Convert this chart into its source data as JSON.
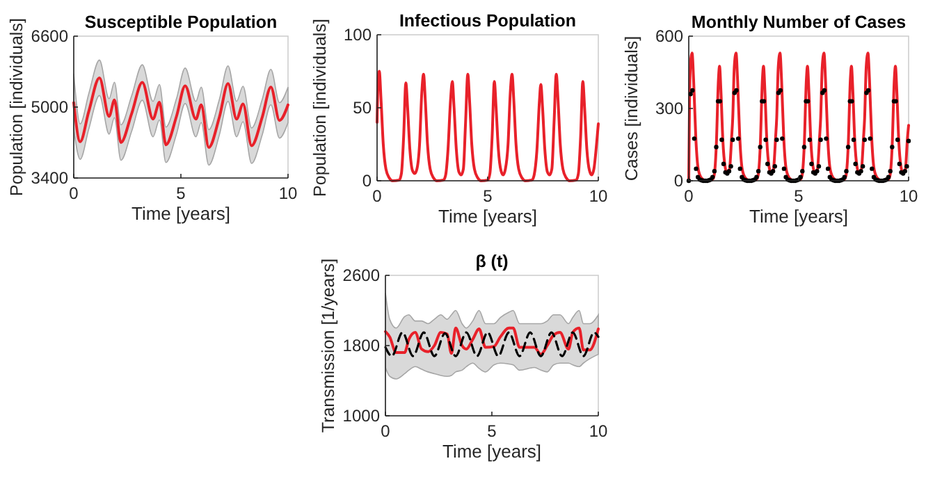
{
  "chart_data": [
    {
      "type": "line",
      "title": "Susceptible Population",
      "xlabel": "Time [years]",
      "ylabel": "Population [individuals]",
      "xlim": [
        0,
        10
      ],
      "xticks": [
        0,
        5,
        10
      ],
      "ylim": [
        3400,
        6600
      ],
      "yticks": [
        3400,
        5000,
        6600
      ],
      "series": [
        {
          "color": "#e8212a",
          "x": [
            0,
            0.3,
            0.7,
            1.2,
            1.65,
            1.9,
            2.2,
            2.7,
            3.2,
            3.7,
            4.0,
            4.3,
            4.8,
            5.2,
            5.7,
            5.95,
            6.3,
            6.8,
            7.2,
            7.6,
            7.9,
            8.3,
            8.8,
            9.2,
            9.6,
            10
          ],
          "values": [
            5100,
            4220,
            4900,
            5660,
            4790,
            5160,
            4200,
            4850,
            5555,
            4730,
            5110,
            4150,
            4800,
            5480,
            4730,
            5050,
            4090,
            4780,
            5530,
            4730,
            5070,
            4130,
            4780,
            5450,
            4700,
            5050
          ],
          "upper": [
            5750,
            4620,
            5300,
            6060,
            5190,
            5560,
            4600,
            5250,
            5955,
            5130,
            5510,
            4550,
            5200,
            5880,
            5130,
            5450,
            4490,
            5180,
            5930,
            5130,
            5470,
            4530,
            5180,
            5850,
            5100,
            5450
          ],
          "lower": [
            4500,
            3820,
            4500,
            5260,
            4390,
            4760,
            3800,
            4450,
            5155,
            4330,
            4710,
            3750,
            4400,
            5080,
            4330,
            4650,
            3690,
            4380,
            5130,
            4330,
            4670,
            3730,
            4380,
            5050,
            4300,
            4650
          ]
        }
      ]
    },
    {
      "type": "line",
      "title": "Infectious Population",
      "xlabel": "Time [years]",
      "ylabel": "Population [individuals]",
      "xlim": [
        0,
        10
      ],
      "xticks": [
        0,
        5,
        10
      ],
      "ylim": [
        0,
        100
      ],
      "yticks": [
        0,
        50,
        100
      ],
      "series": [
        {
          "color": "#e8212a",
          "x": [
            0,
            0.05,
            0.1,
            0.18,
            0.28,
            0.4,
            0.55,
            0.7,
            1.0,
            1.1,
            1.2,
            1.3,
            1.38,
            1.48,
            1.6,
            1.7,
            1.8,
            1.92,
            2.02,
            2.1,
            2.18,
            2.28,
            2.4,
            2.55,
            2.7,
            3.0,
            3.1,
            3.2,
            3.32,
            3.4,
            3.48,
            3.58,
            3.7,
            3.8,
            3.9,
            4.0,
            4.1,
            4.18,
            4.28,
            4.4,
            4.55,
            4.7,
            5.0,
            5.1,
            5.2,
            5.3,
            5.38,
            5.48,
            5.6,
            5.7,
            5.8,
            5.92,
            6.02,
            6.1,
            6.18,
            6.28,
            6.4,
            6.55,
            6.7,
            7.0,
            7.1,
            7.22,
            7.34,
            7.4,
            7.48,
            7.58,
            7.7,
            7.8,
            7.9,
            8.0,
            8.1,
            8.18,
            8.28,
            8.4,
            8.55,
            8.7,
            9.0,
            9.1,
            9.2,
            9.3,
            9.38,
            9.48,
            9.6,
            9.7,
            9.8,
            9.92,
            10
          ],
          "values": [
            40,
            70,
            75,
            55,
            25,
            8,
            2,
            0,
            0.5,
            5,
            30,
            67,
            50,
            22,
            7,
            5,
            8,
            25,
            60,
            73,
            55,
            25,
            8,
            2,
            0,
            0.5,
            4,
            20,
            55,
            68,
            50,
            22,
            6,
            4,
            8,
            40,
            73,
            55,
            25,
            8,
            2,
            0,
            0.5,
            5,
            30,
            68,
            50,
            22,
            7,
            4,
            8,
            25,
            60,
            73,
            55,
            25,
            8,
            2,
            0,
            0.5,
            4,
            20,
            55,
            66,
            50,
            22,
            6,
            4,
            8,
            40,
            73,
            55,
            25,
            8,
            2,
            0,
            0.5,
            5,
            30,
            68,
            50,
            22,
            7,
            4,
            8,
            25,
            39
          ]
        }
      ]
    },
    {
      "type": "line",
      "title": "Monthly Number of Cases",
      "xlabel": "Time [years]",
      "ylabel": "Cases [individuals]",
      "xlim": [
        0,
        10
      ],
      "xticks": [
        0,
        5,
        10
      ],
      "ylim": [
        0,
        600
      ],
      "yticks": [
        0,
        300,
        600
      ],
      "series": [
        {
          "color": "#e8212a",
          "x": [
            0,
            0.04,
            0.1,
            0.15,
            0.22,
            0.32,
            0.42,
            0.55,
            0.7,
            0.85,
            1.05,
            1.15,
            1.25,
            1.35,
            1.4,
            1.46,
            1.55,
            1.65,
            1.75,
            1.85,
            1.95,
            2.0,
            2.07,
            2.15,
            2.22,
            2.32,
            2.42,
            2.55,
            2.7,
            2.85,
            3.05,
            3.15,
            3.25,
            3.35,
            3.4,
            3.46,
            3.55,
            3.65,
            3.75,
            3.85,
            3.95,
            4.0,
            4.07,
            4.15,
            4.22,
            4.32,
            4.42,
            4.55,
            4.7,
            4.85,
            5.05,
            5.15,
            5.25,
            5.35,
            5.4,
            5.46,
            5.55,
            5.65,
            5.75,
            5.85,
            5.95,
            6.0,
            6.07,
            6.15,
            6.22,
            6.32,
            6.42,
            6.55,
            6.7,
            6.85,
            7.05,
            7.15,
            7.25,
            7.35,
            7.4,
            7.46,
            7.55,
            7.65,
            7.75,
            7.85,
            7.95,
            8.0,
            8.07,
            8.15,
            8.22,
            8.32,
            8.42,
            8.55,
            8.7,
            8.85,
            9.05,
            9.15,
            9.25,
            9.35,
            9.4,
            9.46,
            9.55,
            9.65,
            9.75,
            9.85,
            9.95,
            10
          ],
          "values": [
            0,
            370,
            510,
            530,
            420,
            180,
            55,
            15,
            3,
            0,
            3,
            20,
            140,
            420,
            475,
            380,
            170,
            60,
            30,
            45,
            180,
            260,
            470,
            530,
            420,
            180,
            55,
            15,
            3,
            0,
            3,
            20,
            140,
            420,
            475,
            380,
            170,
            60,
            30,
            45,
            180,
            260,
            470,
            530,
            420,
            180,
            55,
            15,
            3,
            0,
            3,
            20,
            140,
            420,
            475,
            380,
            170,
            60,
            30,
            45,
            180,
            260,
            470,
            530,
            420,
            180,
            55,
            15,
            3,
            0,
            3,
            20,
            140,
            420,
            475,
            380,
            170,
            60,
            30,
            45,
            180,
            260,
            470,
            530,
            420,
            180,
            55,
            15,
            3,
            0,
            3,
            20,
            140,
            420,
            475,
            380,
            170,
            60,
            30,
            45,
            180,
            230
          ]
        },
        {
          "type": "scatter",
          "marker": "circle",
          "color": "#000000",
          "x": [
            0,
            0.083,
            0.167,
            0.25,
            0.333,
            0.417,
            0.5,
            0.583,
            0.667,
            0.75,
            0.833,
            0.917,
            1,
            1.083,
            1.167,
            1.25,
            1.333,
            1.417,
            1.5,
            1.583,
            1.667,
            1.75,
            1.833,
            1.917,
            2,
            2.083,
            2.167,
            2.25,
            2.333,
            2.417,
            2.5,
            2.583,
            2.667,
            2.75,
            2.833,
            2.917,
            3,
            3.083,
            3.167,
            3.25,
            3.333,
            3.417,
            3.5,
            3.583,
            3.667,
            3.75,
            3.833,
            3.917,
            4,
            4.083,
            4.167,
            4.25,
            4.333,
            4.417,
            4.5,
            4.583,
            4.667,
            4.75,
            4.833,
            4.917,
            5,
            5.083,
            5.167,
            5.25,
            5.333,
            5.417,
            5.5,
            5.583,
            5.667,
            5.75,
            5.833,
            5.917,
            6,
            6.083,
            6.167,
            6.25,
            6.333,
            6.417,
            6.5,
            6.583,
            6.667,
            6.75,
            6.833,
            6.917,
            7,
            7.083,
            7.167,
            7.25,
            7.333,
            7.417,
            7.5,
            7.583,
            7.667,
            7.75,
            7.833,
            7.917,
            8,
            8.083,
            8.167,
            8.25,
            8.333,
            8.417,
            8.5,
            8.583,
            8.667,
            8.75,
            8.833,
            8.917,
            9,
            9.083,
            9.167,
            9.25,
            9.333,
            9.417,
            9.5,
            9.583,
            9.667,
            9.75,
            9.833,
            9.917,
            10
          ],
          "values": [
            0,
            360,
            375,
            175,
            50,
            15,
            5,
            2,
            0,
            0,
            0,
            2,
            5,
            15,
            40,
            140,
            330,
            330,
            170,
            70,
            35,
            30,
            40,
            60,
            170,
            365,
            375,
            175,
            50,
            15,
            5,
            2,
            0,
            0,
            0,
            2,
            5,
            15,
            40,
            140,
            330,
            330,
            170,
            70,
            35,
            30,
            40,
            60,
            170,
            365,
            375,
            175,
            50,
            15,
            5,
            2,
            0,
            0,
            0,
            2,
            5,
            15,
            40,
            140,
            330,
            330,
            170,
            70,
            35,
            30,
            40,
            60,
            170,
            365,
            375,
            175,
            50,
            15,
            5,
            2,
            0,
            0,
            0,
            2,
            5,
            15,
            40,
            140,
            330,
            330,
            170,
            70,
            35,
            30,
            40,
            60,
            170,
            365,
            375,
            175,
            50,
            15,
            5,
            2,
            0,
            0,
            0,
            2,
            5,
            15,
            40,
            140,
            330,
            330,
            170,
            70,
            35,
            30,
            40,
            60,
            165
          ]
        }
      ]
    },
    {
      "type": "line",
      "title": "β (t)",
      "xlabel": "Time [years]",
      "ylabel": "Transmission [1/years]",
      "xlim": [
        0,
        10
      ],
      "xticks": [
        0,
        5,
        10
      ],
      "ylim": [
        1000,
        2600
      ],
      "yticks": [
        1000,
        1800,
        2600
      ],
      "series": [
        {
          "color": "#e8212a",
          "x": [
            0,
            0.2,
            0.5,
            0.9,
            1.1,
            1.4,
            1.7,
            2.0,
            2.3,
            2.6,
            2.9,
            3.1,
            3.3,
            3.6,
            3.8,
            4.1,
            4.4,
            4.7,
            5.1,
            5.4,
            5.8,
            6.0,
            6.3,
            7.0,
            7.3,
            7.6,
            7.9,
            8.2,
            8.6,
            8.8,
            9.1,
            9.3,
            9.6,
            10
          ],
          "values": [
            1960,
            1900,
            1720,
            1720,
            1870,
            1950,
            1760,
            1730,
            1800,
            1950,
            1930,
            1710,
            2000,
            1800,
            1760,
            1870,
            1990,
            1780,
            1790,
            1900,
            2000,
            2000,
            1780,
            1780,
            1700,
            1800,
            1920,
            1950,
            1760,
            1950,
            2000,
            1750,
            1750,
            1990
          ],
          "upper": [
            2400,
            2100,
            2000,
            2130,
            2150,
            2080,
            2080,
            2050,
            2100,
            2150,
            2100,
            2150,
            2200,
            2050,
            2000,
            2080,
            2200,
            2050,
            2050,
            2120,
            2180,
            2200,
            2050,
            2050,
            2050,
            2080,
            2150,
            2150,
            2050,
            2120,
            2200,
            2050,
            2050,
            2150
          ],
          "lower": [
            1550,
            1450,
            1420,
            1480,
            1520,
            1560,
            1530,
            1500,
            1480,
            1460,
            1450,
            1460,
            1500,
            1520,
            1560,
            1600,
            1540,
            1500,
            1580,
            1600,
            1590,
            1580,
            1520,
            1550,
            1520,
            1500,
            1580,
            1600,
            1600,
            1580,
            1560,
            1600,
            1650,
            1700
          ]
        },
        {
          "color": "#000000",
          "line_style": "dashed",
          "x": [
            0,
            0.3,
            0.8,
            1.3,
            1.8,
            2.3,
            2.8,
            3.3,
            3.8,
            4.3,
            4.8,
            5.3,
            5.8,
            6.3,
            6.8,
            7.3,
            7.8,
            8.3,
            8.8,
            9.3,
            9.8,
            10
          ],
          "values": [
            1780,
            1680,
            1950,
            1680,
            1950,
            1680,
            1940,
            1680,
            1950,
            1680,
            1950,
            1680,
            1950,
            1680,
            1950,
            1680,
            1950,
            1680,
            1950,
            1680,
            1950,
            1900
          ]
        }
      ]
    }
  ]
}
